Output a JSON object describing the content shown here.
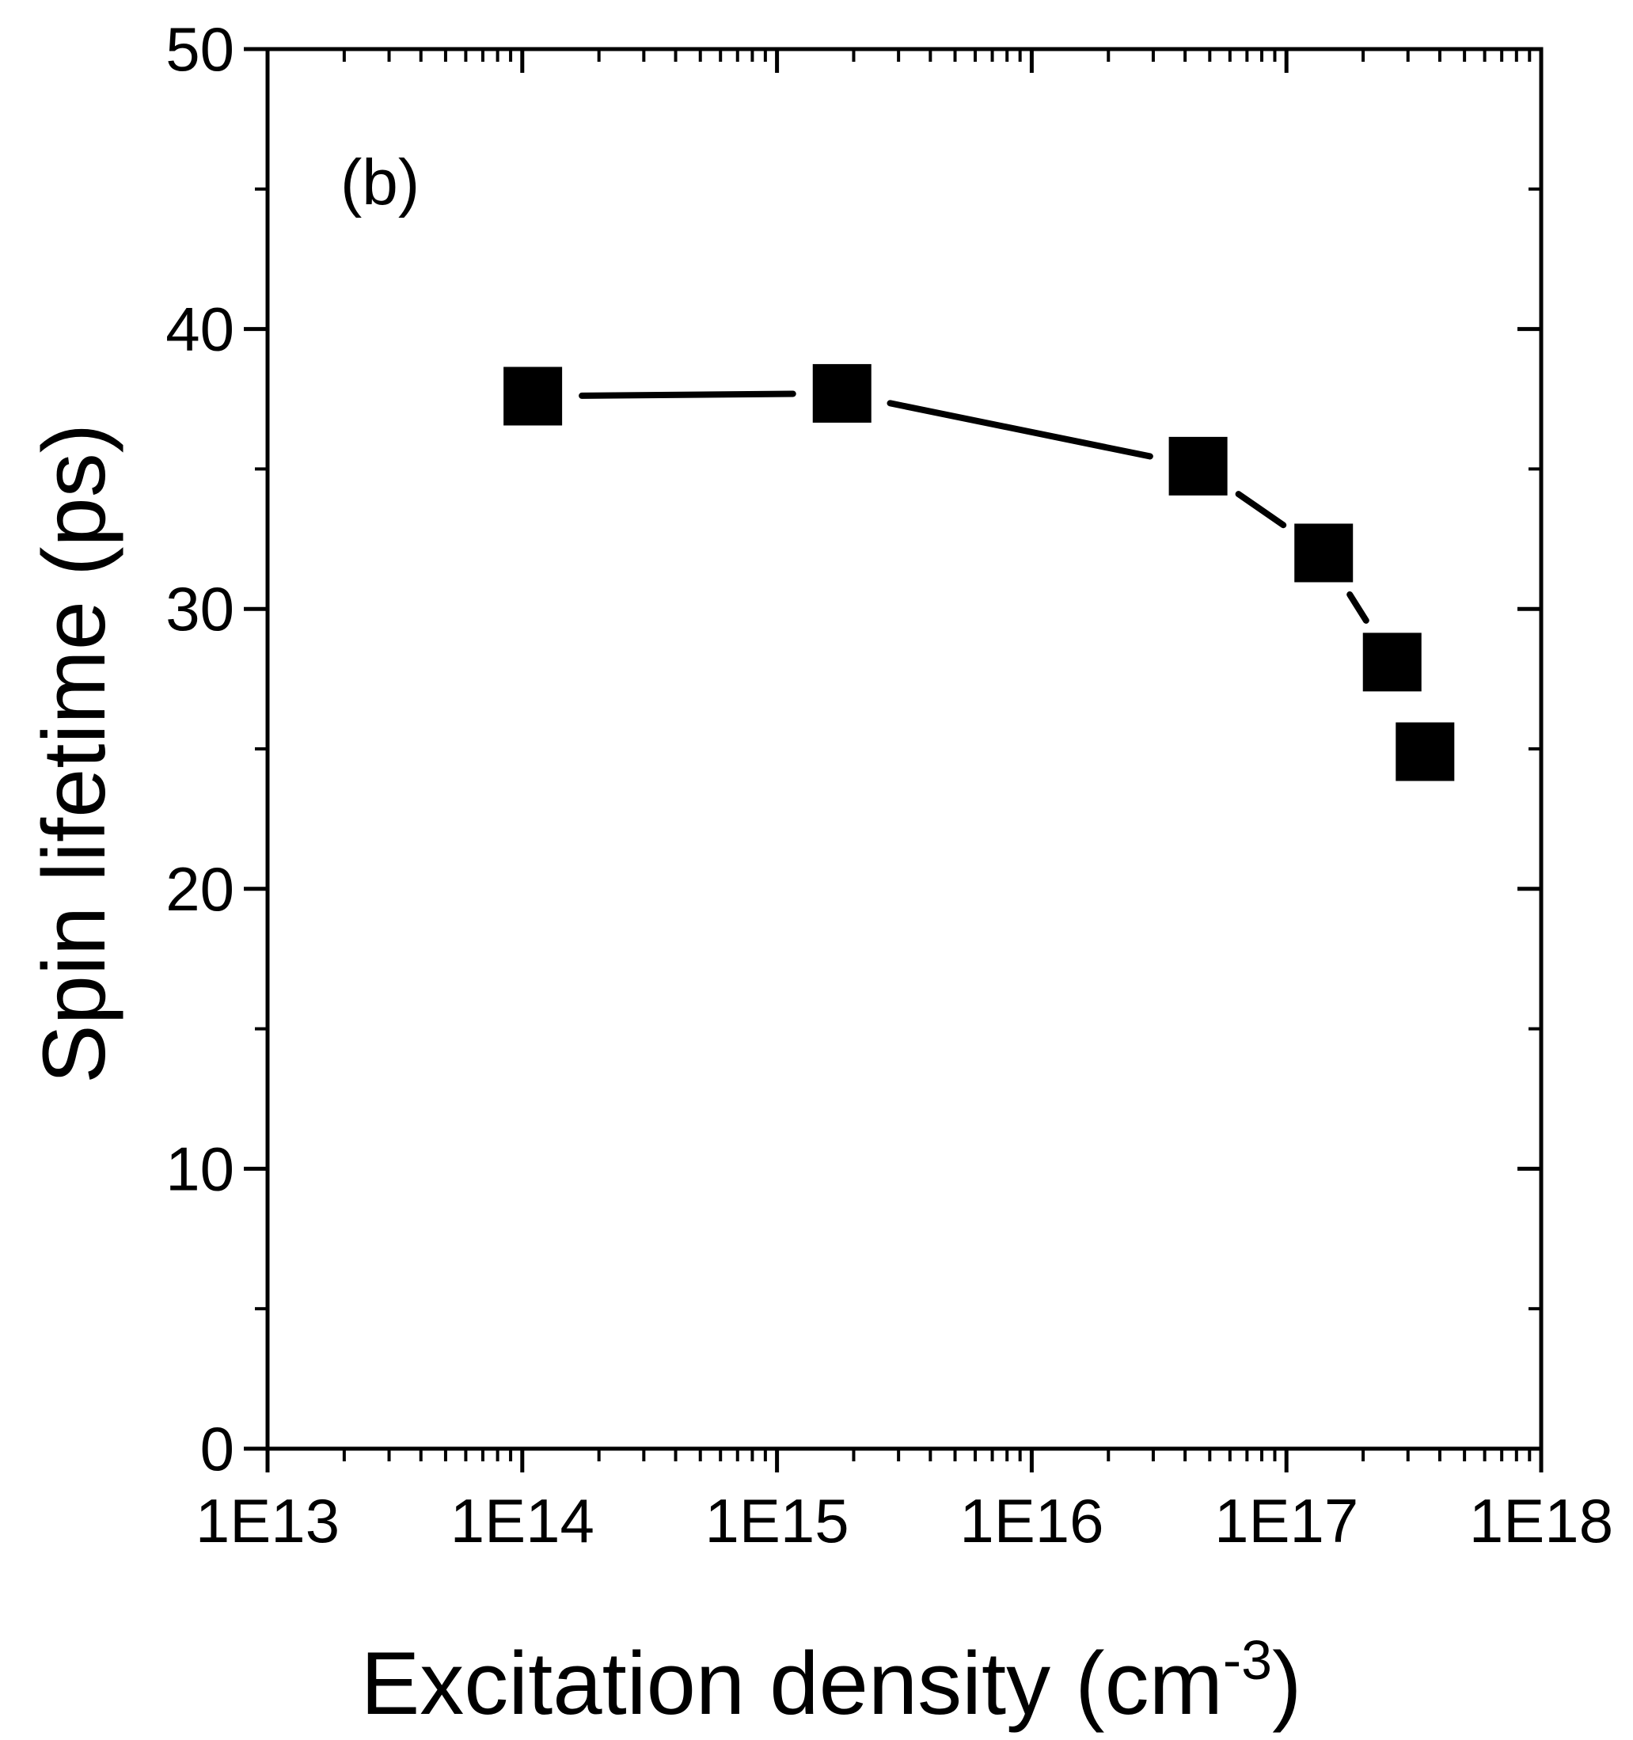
{
  "chart_data": {
    "type": "scatter",
    "title": "",
    "panel_label": "(b)",
    "xlabel": {
      "text": "Excitation density (cm",
      "superscript": "-3",
      "suffix": ")"
    },
    "ylabel": "Spin lifetime (ps)",
    "xscale": "log",
    "xlim": [
      10000000000000.0,
      1e+18
    ],
    "ylim": [
      0,
      50
    ],
    "x_ticks": [
      "1E13",
      "1E14",
      "1E15",
      "1E16",
      "1E17",
      "1E18"
    ],
    "y_ticks": [
      "0",
      "10",
      "20",
      "30",
      "40",
      "50"
    ],
    "grid": false,
    "legend": "none",
    "marker": "square",
    "connected_with_line": true,
    "colors": {
      "axis": "#000000",
      "marker": "#000000",
      "line": "#000000",
      "background": "#ffffff"
    },
    "series": [
      {
        "name": "Spin lifetime",
        "x": [
          110000000000000.0,
          1800000000000000.0,
          4.5e+16,
          1.4e+17,
          2.6e+17,
          3.5e+17
        ],
        "y": [
          37.6,
          37.7,
          35.1,
          32.0,
          28.1,
          24.9
        ]
      }
    ]
  }
}
